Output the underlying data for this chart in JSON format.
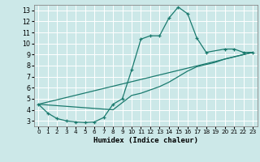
{
  "xlabel": "Humidex (Indice chaleur)",
  "bg_color": "#cce8e8",
  "grid_color": "#ffffff",
  "line_color": "#1a7a6e",
  "xlim": [
    -0.5,
    23.5
  ],
  "ylim": [
    2.5,
    13.5
  ],
  "xticks": [
    0,
    1,
    2,
    3,
    4,
    5,
    6,
    7,
    8,
    9,
    10,
    11,
    12,
    13,
    14,
    15,
    16,
    17,
    18,
    19,
    20,
    21,
    22,
    23
  ],
  "yticks": [
    3,
    4,
    5,
    6,
    7,
    8,
    9,
    10,
    11,
    12,
    13
  ],
  "line1_x": [
    0,
    1,
    2,
    3,
    4,
    5,
    6,
    7,
    8,
    9,
    10,
    11,
    12,
    13,
    14,
    15,
    16,
    17,
    18,
    20,
    21,
    22,
    23
  ],
  "line1_y": [
    4.5,
    3.7,
    3.2,
    3.0,
    2.9,
    2.85,
    2.9,
    3.3,
    4.5,
    5.0,
    7.6,
    10.4,
    10.7,
    10.7,
    12.3,
    13.3,
    12.7,
    10.5,
    9.2,
    9.5,
    9.5,
    9.2,
    9.2
  ],
  "line2_x": [
    0,
    23
  ],
  "line2_y": [
    4.5,
    9.2
  ],
  "line3_x": [
    0,
    8,
    10,
    11,
    12,
    13,
    14,
    15,
    16,
    17,
    18,
    19,
    20,
    21,
    22,
    23
  ],
  "line3_y": [
    4.5,
    4.0,
    5.3,
    5.5,
    5.8,
    6.1,
    6.5,
    7.0,
    7.5,
    7.9,
    8.1,
    8.3,
    8.6,
    8.8,
    9.0,
    9.2
  ]
}
